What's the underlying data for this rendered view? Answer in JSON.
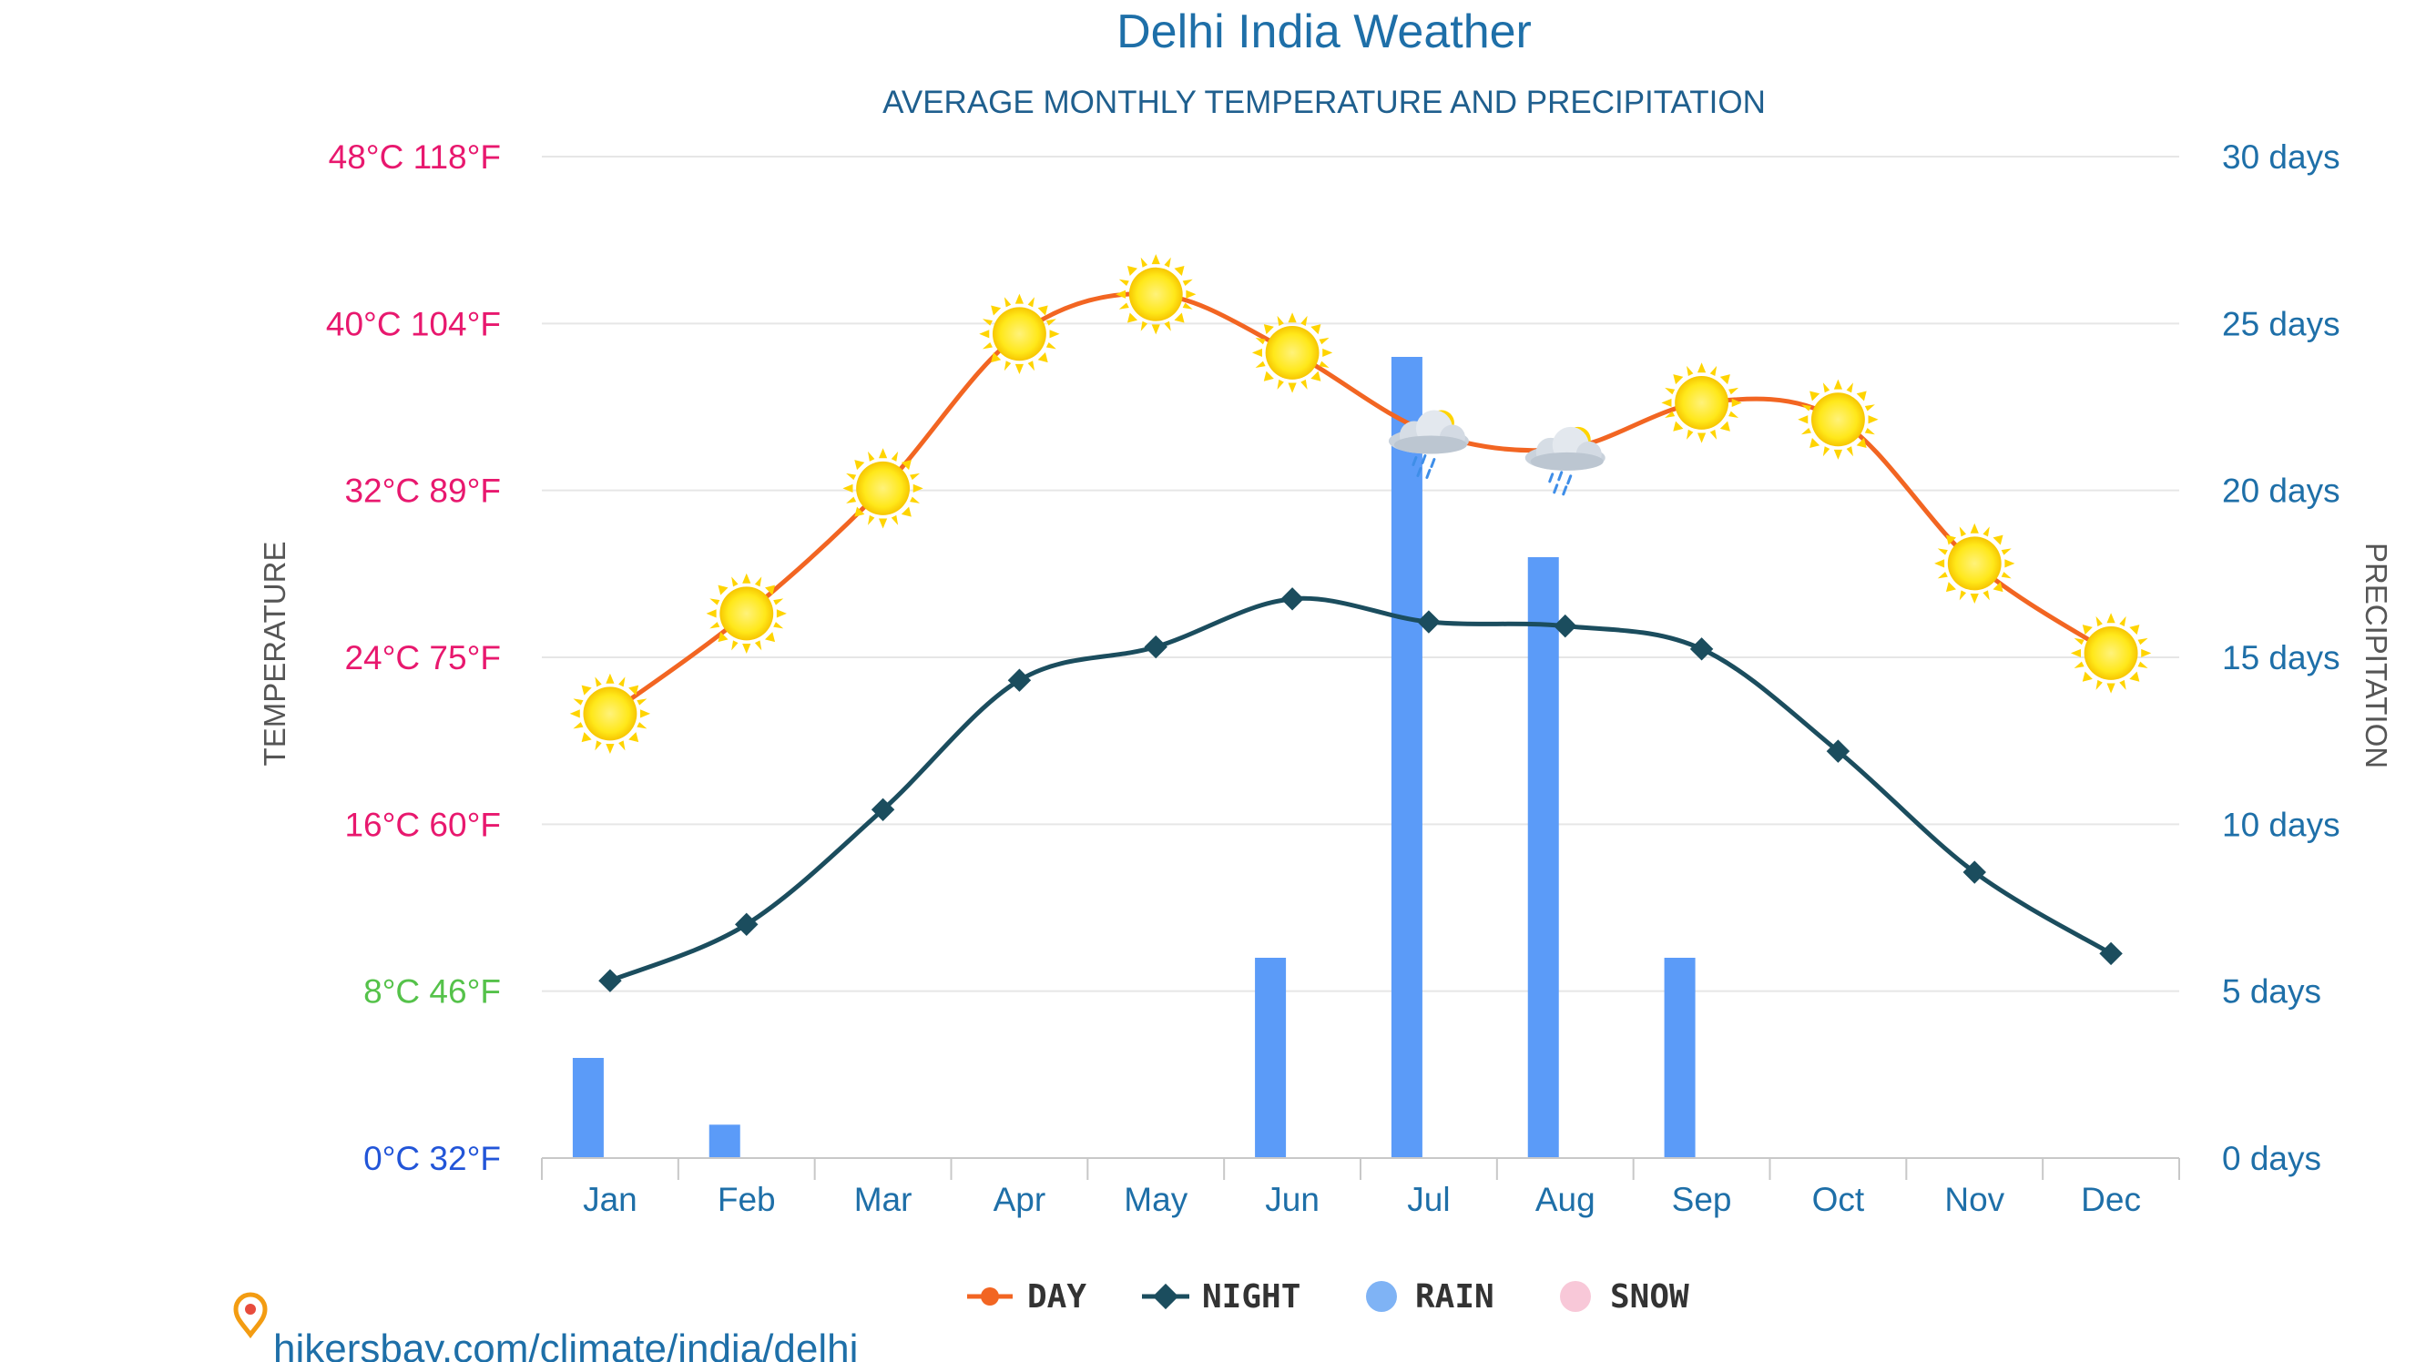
{
  "chart_data": {
    "type": "line",
    "title": "Delhi India Weather",
    "subtitle": "AVERAGE MONTHLY TEMPERATURE AND PRECIPITATION",
    "ylabel": "TEMPERATURE",
    "y2label": "PRECIPITATION",
    "categories": [
      "Jan",
      "Feb",
      "Mar",
      "Apr",
      "May",
      "Jun",
      "Jul",
      "Aug",
      "Sep",
      "Oct",
      "Nov",
      "Dec"
    ],
    "series": [
      {
        "name": "DAY",
        "kind": "line",
        "axis": "temperature",
        "unit": "°C",
        "color": "#f26522",
        "values": [
          21.3,
          26.1,
          32.1,
          39.5,
          41.4,
          38.6,
          34.8,
          34.0,
          36.2,
          35.4,
          28.5,
          24.2
        ]
      },
      {
        "name": "NIGHT",
        "kind": "line",
        "axis": "temperature",
        "unit": "°C",
        "color": "#1b4d5e",
        "values": [
          8.5,
          11.2,
          16.7,
          22.9,
          24.5,
          26.8,
          25.7,
          25.5,
          24.4,
          19.5,
          13.7,
          9.8
        ]
      },
      {
        "name": "RAIN",
        "kind": "bar",
        "axis": "precipitation",
        "unit": "days",
        "color": "#5b9bf8",
        "values": [
          3,
          1,
          0,
          0,
          0,
          6,
          24,
          18,
          6,
          0,
          0,
          0
        ]
      },
      {
        "name": "SNOW",
        "kind": "bar",
        "axis": "precipitation",
        "unit": "days",
        "color": "#f8c8d8",
        "values": [
          0,
          0,
          0,
          0,
          0,
          0,
          0,
          0,
          0,
          0,
          0,
          0
        ]
      }
    ],
    "weather_icons": [
      "sun",
      "sun",
      "sun",
      "sun",
      "sun",
      "sun",
      "rain-cloud",
      "rain-cloud",
      "sun",
      "sun",
      "sun",
      "sun"
    ],
    "y_ticks": [
      {
        "label": "0°C 32°F",
        "value": 0,
        "color": "#2255d8"
      },
      {
        "label": "8°C 46°F",
        "value": 8,
        "color": "#55c24a"
      },
      {
        "label": "16°C 60°F",
        "value": 16,
        "color": "#e8186e"
      },
      {
        "label": "24°C 75°F",
        "value": 24,
        "color": "#e8186e"
      },
      {
        "label": "32°C 89°F",
        "value": 32,
        "color": "#e8186e"
      },
      {
        "label": "40°C 104°F",
        "value": 40,
        "color": "#e8186e"
      },
      {
        "label": "48°C 118°F",
        "value": 48,
        "color": "#e8186e"
      }
    ],
    "y2_ticks": [
      {
        "label": "0 days",
        "value": 0
      },
      {
        "label": "5 days",
        "value": 5
      },
      {
        "label": "10 days",
        "value": 10
      },
      {
        "label": "15 days",
        "value": 15
      },
      {
        "label": "20 days",
        "value": 20
      },
      {
        "label": "25 days",
        "value": 25
      },
      {
        "label": "30 days",
        "value": 30
      }
    ],
    "ylim": [
      0,
      48
    ],
    "y2lim": [
      0,
      30
    ],
    "grid": true,
    "legend_position": "bottom-center"
  },
  "legend": [
    {
      "name": "DAY",
      "icon": "line-dot-icon",
      "color": "#f26522"
    },
    {
      "name": "NIGHT",
      "icon": "line-diamond-icon",
      "color": "#1b4d5e"
    },
    {
      "name": "RAIN",
      "icon": "circle-icon",
      "color": "#7fb3f5"
    },
    {
      "name": "SNOW",
      "icon": "circle-icon",
      "color": "#f8c8d8"
    }
  ],
  "source": {
    "text": "hikersbay.com/climate/india/delhi",
    "icon": "map-pin-icon"
  },
  "colors": {
    "title": "#1e6fa8",
    "grid": "#e6e6e6",
    "axis": "#c8c8c8"
  }
}
